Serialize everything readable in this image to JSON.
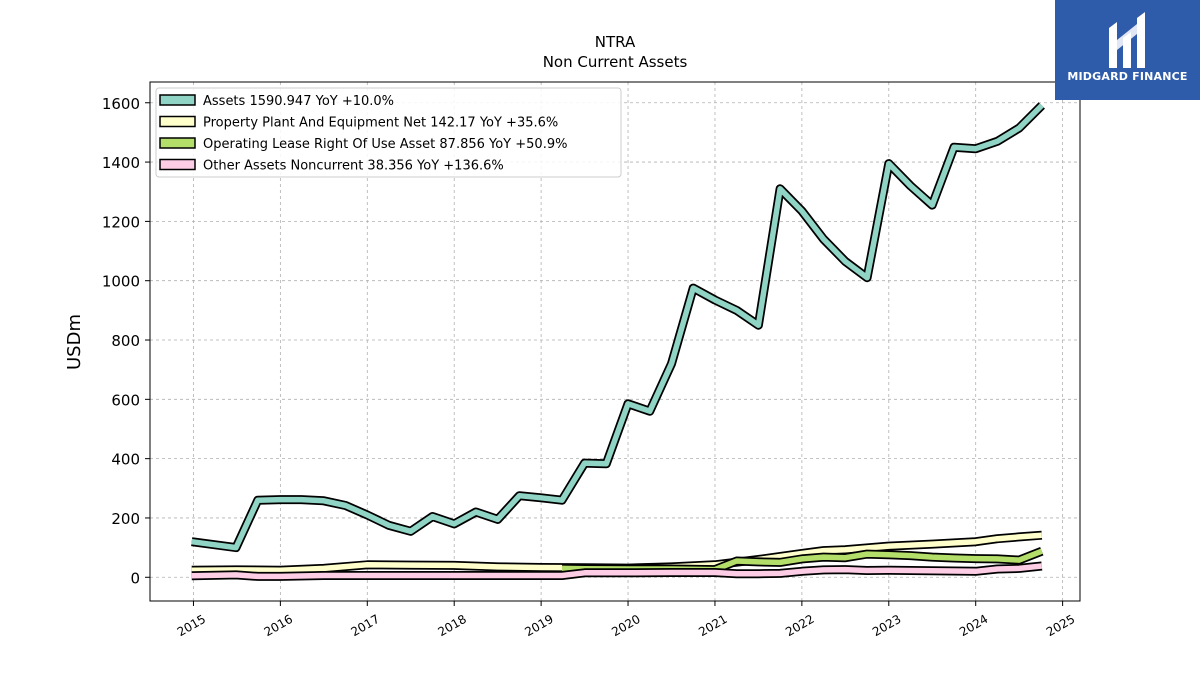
{
  "chart_data": {
    "type": "line",
    "title": "NTRA",
    "subtitle": "Non Current  Assets",
    "ylabel": "USDm",
    "xlabel": "",
    "xlim": [
      2014.5,
      2025.2
    ],
    "ylim": [
      -80,
      1670
    ],
    "yticks": [
      0,
      200,
      400,
      600,
      800,
      1000,
      1200,
      1400,
      1600
    ],
    "xticks": [
      "2015",
      "2016",
      "2017",
      "2018",
      "2019",
      "2020",
      "2021",
      "2022",
      "2023",
      "2024",
      "2025"
    ],
    "grid": true,
    "legend_position": "top-left",
    "series": [
      {
        "name": "Assets",
        "legend_label": "Assets  1590.947 YoY +10.0%",
        "color": "#8fd4c4",
        "points": [
          [
            2014.98,
            120
          ],
          [
            2015.49,
            100
          ],
          [
            2015.74,
            260
          ],
          [
            2016.0,
            262
          ],
          [
            2016.24,
            262
          ],
          [
            2016.5,
            258
          ],
          [
            2016.75,
            242
          ],
          [
            2017.0,
            210
          ],
          [
            2017.25,
            175
          ],
          [
            2017.5,
            155
          ],
          [
            2017.75,
            205
          ],
          [
            2018.0,
            180
          ],
          [
            2018.25,
            220
          ],
          [
            2018.5,
            195
          ],
          [
            2018.75,
            275
          ],
          [
            2019.0,
            268
          ],
          [
            2019.24,
            260
          ],
          [
            2019.5,
            385
          ],
          [
            2019.75,
            383
          ],
          [
            2020.0,
            585
          ],
          [
            2020.25,
            560
          ],
          [
            2020.5,
            720
          ],
          [
            2020.75,
            975
          ],
          [
            2021.0,
            935
          ],
          [
            2021.25,
            900
          ],
          [
            2021.5,
            850
          ],
          [
            2021.75,
            1310
          ],
          [
            2022.0,
            1235
          ],
          [
            2022.25,
            1140
          ],
          [
            2022.5,
            1065
          ],
          [
            2022.75,
            1010
          ],
          [
            2023.0,
            1395
          ],
          [
            2023.25,
            1320
          ],
          [
            2023.5,
            1255
          ],
          [
            2023.75,
            1450
          ],
          [
            2024.0,
            1445
          ],
          [
            2024.25,
            1470
          ],
          [
            2024.5,
            1515
          ],
          [
            2024.76,
            1591
          ]
        ]
      },
      {
        "name": "Property Plant And Equipment Net",
        "legend_label": "Property Plant And Equipment Net  142.17 YoY +35.6%",
        "color": "#ffffcc",
        "points": [
          [
            2014.98,
            24
          ],
          [
            2015.49,
            25
          ],
          [
            2016.0,
            24
          ],
          [
            2016.5,
            30
          ],
          [
            2017.0,
            42
          ],
          [
            2017.5,
            41
          ],
          [
            2018.0,
            40
          ],
          [
            2018.5,
            35
          ],
          [
            2019.0,
            33
          ],
          [
            2019.5,
            32
          ],
          [
            2020.0,
            31
          ],
          [
            2020.5,
            35
          ],
          [
            2021.0,
            42
          ],
          [
            2021.5,
            60
          ],
          [
            2022.0,
            80
          ],
          [
            2022.25,
            90
          ],
          [
            2022.5,
            93
          ],
          [
            2023.0,
            105
          ],
          [
            2023.5,
            112
          ],
          [
            2024.0,
            120
          ],
          [
            2024.25,
            130
          ],
          [
            2024.5,
            136
          ],
          [
            2024.76,
            142
          ]
        ]
      },
      {
        "name": "Operating Lease Right Of Use Asset",
        "legend_label": "Operating Lease Right Of Use Asset  87.856 YoY +50.9%",
        "color": "#b3de69",
        "points": [
          [
            2019.24,
            30
          ],
          [
            2019.5,
            29
          ],
          [
            2020.0,
            28
          ],
          [
            2020.5,
            28
          ],
          [
            2021.0,
            26
          ],
          [
            2021.25,
            55
          ],
          [
            2021.5,
            52
          ],
          [
            2021.75,
            50
          ],
          [
            2022.0,
            62
          ],
          [
            2022.25,
            68
          ],
          [
            2022.5,
            66
          ],
          [
            2022.75,
            78
          ],
          [
            2023.0,
            76
          ],
          [
            2023.25,
            73
          ],
          [
            2023.5,
            68
          ],
          [
            2023.75,
            65
          ],
          [
            2024.0,
            63
          ],
          [
            2024.25,
            62
          ],
          [
            2024.5,
            58
          ],
          [
            2024.76,
            88
          ]
        ]
      },
      {
        "name": "Other Assets Noncurrent",
        "legend_label": "Other Assets Noncurrent  38.356 YoY +136.6%",
        "color": "#fccde5",
        "points": [
          [
            2014.98,
            5
          ],
          [
            2015.49,
            8
          ],
          [
            2015.74,
            3
          ],
          [
            2016.0,
            3
          ],
          [
            2016.5,
            6
          ],
          [
            2017.0,
            6
          ],
          [
            2017.5,
            6
          ],
          [
            2018.0,
            6
          ],
          [
            2018.5,
            6
          ],
          [
            2019.0,
            6
          ],
          [
            2019.24,
            6
          ],
          [
            2019.5,
            15
          ],
          [
            2020.0,
            15
          ],
          [
            2020.5,
            16
          ],
          [
            2021.0,
            16
          ],
          [
            2021.25,
            12
          ],
          [
            2021.5,
            12
          ],
          [
            2021.75,
            13
          ],
          [
            2022.0,
            20
          ],
          [
            2022.25,
            25
          ],
          [
            2022.5,
            26
          ],
          [
            2022.75,
            23
          ],
          [
            2023.0,
            24
          ],
          [
            2023.5,
            22
          ],
          [
            2024.0,
            20
          ],
          [
            2024.25,
            28
          ],
          [
            2024.5,
            30
          ],
          [
            2024.76,
            38
          ]
        ]
      }
    ]
  },
  "logo": {
    "text": "MIDGARD FINANCE",
    "color": "#2f5bab"
  }
}
